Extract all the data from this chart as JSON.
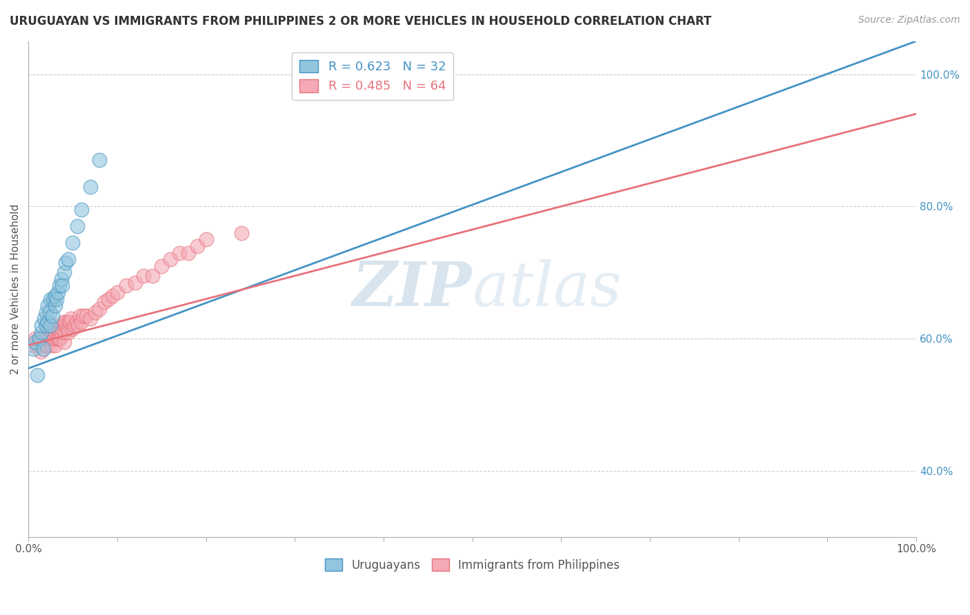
{
  "title": "URUGUAYAN VS IMMIGRANTS FROM PHILIPPINES 2 OR MORE VEHICLES IN HOUSEHOLD CORRELATION CHART",
  "source": "Source: ZipAtlas.com",
  "ylabel": "2 or more Vehicles in Household",
  "ylabel_right_ticks": [
    "40.0%",
    "60.0%",
    "80.0%",
    "100.0%"
  ],
  "ylabel_right_values": [
    0.4,
    0.6,
    0.8,
    1.0
  ],
  "watermark_zip": "ZIP",
  "watermark_atlas": "atlas",
  "legend_uruguayan": "R = 0.623   N = 32",
  "legend_philippines": "R = 0.485   N = 64",
  "legend_label1": "Uruguayans",
  "legend_label2": "Immigrants from Philippines",
  "color_uruguayan": "#92c5de",
  "color_philippines": "#f4a9b5",
  "line_color_uruguayan": "#4393c3",
  "line_color_philippines": "#e8717a",
  "uruguayan_x": [
    0.005,
    0.008,
    0.01,
    0.012,
    0.015,
    0.015,
    0.017,
    0.018,
    0.02,
    0.02,
    0.022,
    0.022,
    0.024,
    0.025,
    0.025,
    0.027,
    0.028,
    0.03,
    0.03,
    0.032,
    0.033,
    0.035,
    0.037,
    0.038,
    0.04,
    0.042,
    0.045,
    0.05,
    0.055,
    0.06,
    0.07,
    0.08
  ],
  "uruguayan_y": [
    0.585,
    0.595,
    0.545,
    0.6,
    0.61,
    0.62,
    0.585,
    0.63,
    0.62,
    0.64,
    0.625,
    0.65,
    0.64,
    0.62,
    0.66,
    0.635,
    0.66,
    0.65,
    0.665,
    0.66,
    0.67,
    0.68,
    0.69,
    0.68,
    0.7,
    0.715,
    0.72,
    0.745,
    0.77,
    0.795,
    0.83,
    0.87
  ],
  "philippines_x": [
    0.005,
    0.008,
    0.01,
    0.012,
    0.014,
    0.015,
    0.016,
    0.018,
    0.02,
    0.02,
    0.022,
    0.023,
    0.024,
    0.025,
    0.025,
    0.026,
    0.027,
    0.028,
    0.03,
    0.03,
    0.031,
    0.032,
    0.033,
    0.034,
    0.035,
    0.036,
    0.037,
    0.038,
    0.04,
    0.04,
    0.041,
    0.042,
    0.043,
    0.044,
    0.045,
    0.046,
    0.047,
    0.048,
    0.05,
    0.052,
    0.054,
    0.056,
    0.058,
    0.06,
    0.062,
    0.065,
    0.07,
    0.075,
    0.08,
    0.085,
    0.09,
    0.095,
    0.1,
    0.11,
    0.12,
    0.13,
    0.14,
    0.15,
    0.16,
    0.17,
    0.18,
    0.19,
    0.2,
    0.24
  ],
  "philippines_y": [
    0.59,
    0.6,
    0.59,
    0.6,
    0.58,
    0.6,
    0.59,
    0.6,
    0.59,
    0.61,
    0.59,
    0.6,
    0.6,
    0.6,
    0.62,
    0.59,
    0.61,
    0.6,
    0.59,
    0.61,
    0.6,
    0.62,
    0.6,
    0.6,
    0.61,
    0.6,
    0.61,
    0.615,
    0.595,
    0.625,
    0.61,
    0.62,
    0.625,
    0.615,
    0.61,
    0.625,
    0.625,
    0.63,
    0.615,
    0.62,
    0.625,
    0.62,
    0.635,
    0.625,
    0.635,
    0.635,
    0.63,
    0.64,
    0.645,
    0.655,
    0.66,
    0.665,
    0.67,
    0.68,
    0.685,
    0.695,
    0.695,
    0.71,
    0.72,
    0.73,
    0.73,
    0.74,
    0.75,
    0.76
  ],
  "xlim": [
    0.0,
    1.0
  ],
  "ylim": [
    0.3,
    1.05
  ],
  "figsize": [
    14.06,
    8.92
  ],
  "dpi": 100,
  "blue_line_x0": 0.0,
  "blue_line_y0": 0.555,
  "blue_line_x1": 1.0,
  "blue_line_y1": 1.05,
  "pink_line_x0": 0.0,
  "pink_line_y0": 0.59,
  "pink_line_x1": 1.0,
  "pink_line_y1": 0.94
}
